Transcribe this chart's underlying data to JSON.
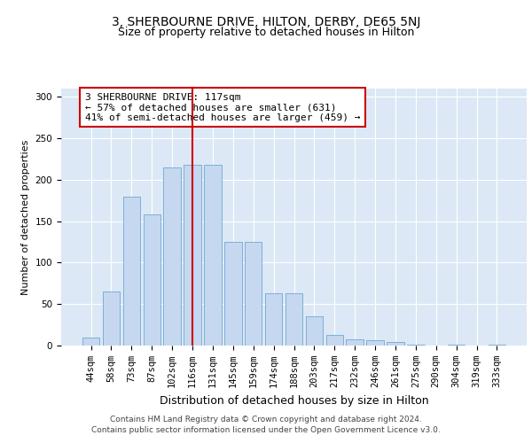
{
  "title": "3, SHERBOURNE DRIVE, HILTON, DERBY, DE65 5NJ",
  "subtitle": "Size of property relative to detached houses in Hilton",
  "xlabel": "Distribution of detached houses by size in Hilton",
  "ylabel": "Number of detached properties",
  "categories": [
    "44sqm",
    "58sqm",
    "73sqm",
    "87sqm",
    "102sqm",
    "116sqm",
    "131sqm",
    "145sqm",
    "159sqm",
    "174sqm",
    "188sqm",
    "203sqm",
    "217sqm",
    "232sqm",
    "246sqm",
    "261sqm",
    "275sqm",
    "290sqm",
    "304sqm",
    "319sqm",
    "333sqm"
  ],
  "values": [
    10,
    65,
    180,
    158,
    215,
    218,
    218,
    125,
    125,
    63,
    63,
    35,
    13,
    7,
    6,
    4,
    1,
    0,
    1,
    0,
    1
  ],
  "bar_color": "#c5d8f0",
  "bar_edge_color": "#6fa8d4",
  "vline_x_index": 5,
  "vline_color": "#cc0000",
  "annotation_text": "3 SHERBOURNE DRIVE: 117sqm\n← 57% of detached houses are smaller (631)\n41% of semi-detached houses are larger (459) →",
  "annotation_box_color": "#ffffff",
  "annotation_box_edge_color": "#cc0000",
  "ylim": [
    0,
    310
  ],
  "yticks": [
    0,
    50,
    100,
    150,
    200,
    250,
    300
  ],
  "background_color": "#dce8f5",
  "footer_line1": "Contains HM Land Registry data © Crown copyright and database right 2024.",
  "footer_line2": "Contains public sector information licensed under the Open Government Licence v3.0.",
  "title_fontsize": 10,
  "subtitle_fontsize": 9,
  "xlabel_fontsize": 9,
  "ylabel_fontsize": 8,
  "tick_fontsize": 7.5,
  "annotation_fontsize": 8,
  "footer_fontsize": 6.5
}
